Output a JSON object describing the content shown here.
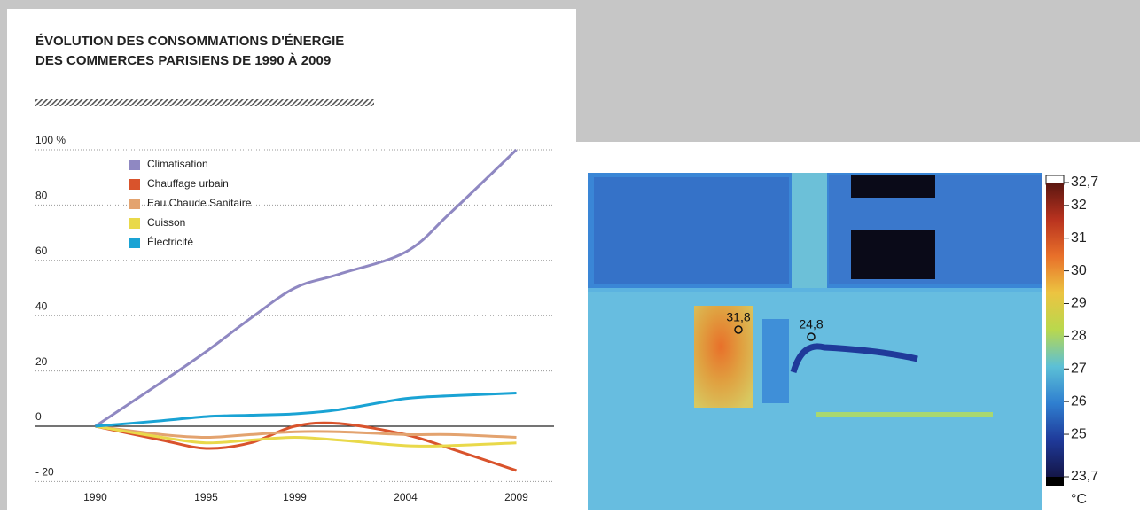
{
  "chart_data": [
    {
      "type": "line",
      "title": [
        "ÉVOLUTION DES CONSOMMATIONS D'ÉNERGIE",
        "DES COMMERCES PARISIENS DE 1990 À 2009"
      ],
      "x": [
        1990,
        1993,
        1995,
        1997,
        1999,
        2001,
        2004,
        2006,
        2009
      ],
      "series": [
        {
          "name": "Climatisation",
          "color": "#8f88c2",
          "values": [
            0,
            16,
            27,
            39,
            50,
            55,
            63,
            77,
            100
          ]
        },
        {
          "name": "Chauffage urbain",
          "color": "#d9532c",
          "values": [
            0,
            -5,
            -8,
            -6,
            0,
            1,
            -3,
            -8,
            -16
          ]
        },
        {
          "name": "Eau Chaude Sanitaire",
          "color": "#e3a36f",
          "values": [
            0,
            -3,
            -4,
            -3,
            -2,
            -2,
            -3,
            -3,
            -4
          ]
        },
        {
          "name": "Cuisson",
          "color": "#e9d94a",
          "values": [
            0,
            -4,
            -6,
            -5,
            -4,
            -5,
            -7,
            -7,
            -6
          ]
        },
        {
          "name": "Électricité",
          "color": "#1aa3d4",
          "values": [
            0,
            2,
            3.5,
            4,
            4.5,
            6,
            10,
            11,
            12
          ]
        }
      ],
      "xlim": [
        1987.3,
        2010.7
      ],
      "xticks": [
        1990,
        1995,
        1999,
        2004,
        2009
      ],
      "ylim": [
        -25,
        100
      ],
      "yticks": [
        {
          "value": -20,
          "label": "- 20"
        },
        0,
        20,
        40,
        60,
        80,
        {
          "value": 100,
          "label": "100 %"
        }
      ],
      "grid": true
    },
    {
      "type": "colorbar",
      "unit": "°C",
      "ylim": [
        23.7,
        32.7
      ],
      "yticks": [
        {
          "value": 32.7,
          "label": "32,7"
        },
        32,
        31,
        30,
        29,
        28,
        27,
        26,
        25,
        {
          "value": 23.7,
          "label": "23,7"
        }
      ],
      "colors": [
        "#5a1610",
        "#b8321f",
        "#e8702a",
        "#ecc441",
        "#b9d84d",
        "#5cc0d6",
        "#2f7fd0",
        "#1f3a9a",
        "#141648"
      ],
      "annotations": [
        {
          "value": 31.8,
          "label": "31,8"
        },
        {
          "value": 24.8,
          "label": "24,8"
        }
      ]
    }
  ]
}
